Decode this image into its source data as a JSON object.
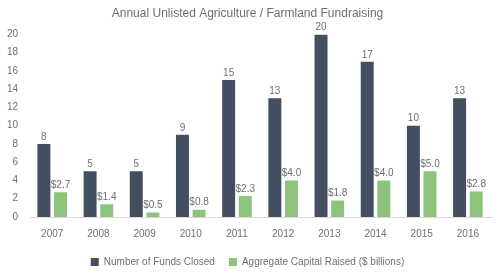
{
  "chart_data": {
    "type": "bar",
    "title": "Annual Unlisted Agriculture / Farmland Fundraising",
    "categories": [
      "2007",
      "2008",
      "2009",
      "2010",
      "2011",
      "2012",
      "2013",
      "2014",
      "2015",
      "2016"
    ],
    "series": [
      {
        "name": "Number of Funds Closed",
        "color": "#434f60",
        "values": [
          8,
          5,
          5,
          9,
          15,
          13,
          20,
          17,
          10,
          13
        ]
      },
      {
        "name": "Aggregate Capital Raised ($ billions)",
        "color": "#8cc47c",
        "values": [
          2.7,
          1.4,
          0.5,
          0.8,
          2.3,
          4.0,
          1.8,
          4.0,
          5.0,
          2.8
        ],
        "value_labels": [
          "$2.7",
          "$1.4",
          "$0.5",
          "$0.8",
          "$2.3",
          "$4.0",
          "$1.8",
          "$4.0",
          "$5.0",
          "$2.8"
        ]
      }
    ],
    "ylim": [
      0,
      20
    ],
    "yticks": [
      0,
      2,
      4,
      6,
      8,
      10,
      12,
      14,
      16,
      18,
      20
    ],
    "grid": false,
    "legend": "bottom",
    "data_labels": true
  }
}
